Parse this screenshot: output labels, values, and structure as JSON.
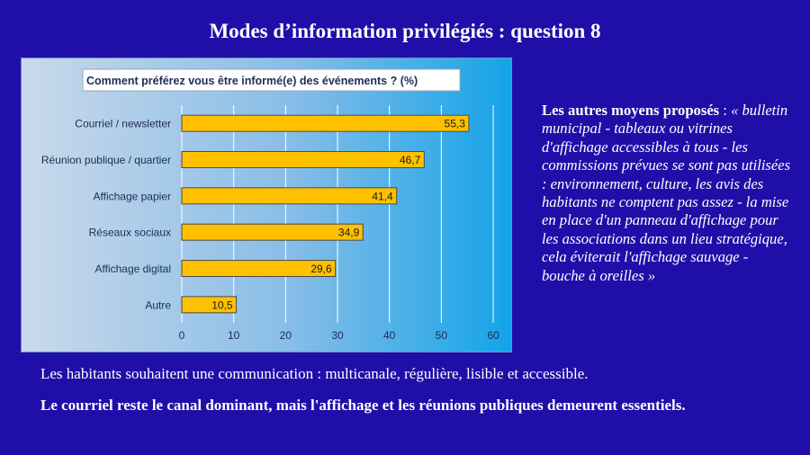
{
  "slide": {
    "title": "Modes d’information privilégiés : question 8",
    "side_lead": "Les autres moyens proposés",
    "side_sep": " : ",
    "side_quote": "« bulletin municipal - tableaux ou vitrines d'affichage accessibles à tous - les commissions prévues se sont pas utilisées : environnement, culture, les avis des habitants ne comptent pas assez - la mise en place d'un panneau d'affichage pour les associations dans un lieu stratégique, cela éviterait l'affichage sauvage - bouche à oreilles »",
    "summary": "Les habitants souhaitent une communication : multicanale, régulière, lisible et accessible.",
    "conclusion": "Le courriel reste le canal dominant, mais l'affichage et les réunions publiques demeurent essentiels."
  },
  "chart_data": {
    "type": "bar",
    "orientation": "horizontal",
    "title": "Comment préférez vous être informé(e) des événements ? (%)",
    "categories": [
      "Courriel / newsletter",
      "Réunion publique / quartier",
      "Affichage papier",
      "Réseaux sociaux",
      "Affichage digital",
      "Autre"
    ],
    "values": [
      55.3,
      46.7,
      41.4,
      34.9,
      29.6,
      10.5
    ],
    "value_labels": [
      "55,3",
      "46,7",
      "41,4",
      "34,9",
      "29,6",
      "10,5"
    ],
    "xlim": [
      0,
      60
    ],
    "xticks": [
      0,
      10,
      20,
      30,
      40,
      50,
      60
    ],
    "grid": true,
    "colors": {
      "bar": "#ffc000",
      "bar_border": "#4a4a4a",
      "grid": "#ffffff",
      "text": "#1f2b55",
      "title_bg": "#ffffff"
    }
  }
}
